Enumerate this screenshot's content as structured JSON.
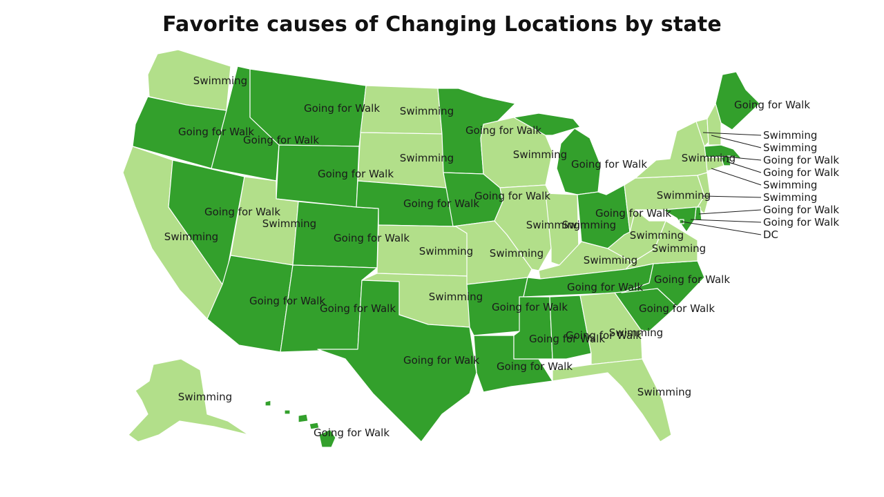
{
  "title": "Favorite causes of Changing Locations by state",
  "colors": {
    "Going for Walk": "#33a02c",
    "Swimming": "#b2df8a"
  },
  "states": [
    {
      "id": "WA",
      "value": "Swimming",
      "label": "Swimming"
    },
    {
      "id": "OR",
      "value": "Going for Walk",
      "label": "Going for Walk"
    },
    {
      "id": "CA",
      "value": "Swimming",
      "label": "Swimming"
    },
    {
      "id": "NV",
      "value": "Going for Walk",
      "label": "Going for Walk"
    },
    {
      "id": "ID",
      "value": "Going for Walk",
      "label": "Going for Walk"
    },
    {
      "id": "MT",
      "value": "Going for Walk",
      "label": "Going for Walk"
    },
    {
      "id": "WY",
      "value": "Going for Walk",
      "label": "Going for Walk"
    },
    {
      "id": "UT",
      "value": "Swimming",
      "label": "Swimming"
    },
    {
      "id": "AZ",
      "value": "Going for Walk",
      "label": "Going for Walk"
    },
    {
      "id": "CO",
      "value": "Going for Walk",
      "label": "Going for Walk"
    },
    {
      "id": "NM",
      "value": "Going for Walk",
      "label": "Going for Walk"
    },
    {
      "id": "ND",
      "value": "Swimming",
      "label": "Swimming"
    },
    {
      "id": "SD",
      "value": "Swimming",
      "label": "Swimming"
    },
    {
      "id": "NE",
      "value": "Going for Walk",
      "label": "Going for Walk"
    },
    {
      "id": "KS",
      "value": "Swimming",
      "label": "Swimming"
    },
    {
      "id": "OK",
      "value": "Swimming",
      "label": "Swimming"
    },
    {
      "id": "TX",
      "value": "Going for Walk",
      "label": "Going for Walk"
    },
    {
      "id": "MN",
      "value": "Going for Walk",
      "label": "Going for Walk"
    },
    {
      "id": "IA",
      "value": "Going for Walk",
      "label": "Going for Walk"
    },
    {
      "id": "MO",
      "value": "Swimming",
      "label": "Swimming"
    },
    {
      "id": "AR",
      "value": "Going for Walk",
      "label": "Going for Walk"
    },
    {
      "id": "LA",
      "value": "Going for Walk",
      "label": "Going for Walk"
    },
    {
      "id": "WI",
      "value": "Swimming",
      "label": "Swimming"
    },
    {
      "id": "IL",
      "value": "Swimming",
      "label": "Swimming"
    },
    {
      "id": "MI",
      "value": "Going for Walk",
      "label": "Going for Walk"
    },
    {
      "id": "IN",
      "value": "Swimming",
      "label": "Swimming"
    },
    {
      "id": "OH",
      "value": "Going for Walk",
      "label": "Going for Walk"
    },
    {
      "id": "KY",
      "value": "Swimming",
      "label": "Swimming"
    },
    {
      "id": "TN",
      "value": "Going for Walk",
      "label": "Going for Walk"
    },
    {
      "id": "MS",
      "value": "Going for Walk",
      "label": "Going for Walk"
    },
    {
      "id": "AL",
      "value": "Going for Walk",
      "label": "Going for Walk"
    },
    {
      "id": "GA",
      "value": "Swimming",
      "label": "Swimming"
    },
    {
      "id": "FL",
      "value": "Swimming",
      "label": "Swimming"
    },
    {
      "id": "SC",
      "value": "Going for Walk",
      "label": "Going for Walk"
    },
    {
      "id": "NC",
      "value": "Going for Walk",
      "label": "Going for Walk"
    },
    {
      "id": "VA",
      "value": "Swimming",
      "label": "Swimming"
    },
    {
      "id": "WV",
      "value": "Swimming",
      "label": "Swimming"
    },
    {
      "id": "PA",
      "value": "Swimming",
      "label": "Swimming"
    },
    {
      "id": "NY",
      "value": "Swimming",
      "label": "Swimming"
    },
    {
      "id": "ME",
      "value": "Going for Walk",
      "label": "Going for Walk"
    },
    {
      "id": "AK",
      "value": "Swimming",
      "label": "Swimming"
    },
    {
      "id": "HI",
      "value": "Going for Walk",
      "label": "Going for Walk"
    },
    {
      "id": "VT",
      "value": "Swimming",
      "label": "Swimming"
    },
    {
      "id": "NH",
      "value": "Swimming",
      "label": "Swimming"
    },
    {
      "id": "MA",
      "value": "Going for Walk",
      "label": "Going for Walk"
    },
    {
      "id": "RI",
      "value": "Going for Walk",
      "label": "Going for Walk"
    },
    {
      "id": "CT",
      "value": "Swimming",
      "label": "Swimming"
    },
    {
      "id": "NJ",
      "value": "Swimming",
      "label": "Swimming"
    },
    {
      "id": "DE",
      "value": "Going for Walk",
      "label": "Going for Walk"
    },
    {
      "id": "MD",
      "value": "Going for Walk",
      "label": "Going for Walk"
    },
    {
      "id": "DC",
      "value": "Going for Walk",
      "label": "DC"
    }
  ],
  "callouts": [
    "VT",
    "NH",
    "MA",
    "RI",
    "CT",
    "NJ",
    "DE",
    "MD",
    "DC"
  ]
}
